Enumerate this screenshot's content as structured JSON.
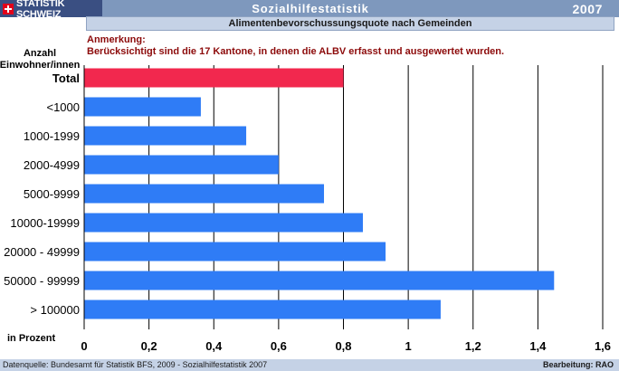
{
  "header": {
    "brand": "STATISTIK SCHWEIZ",
    "section": "Sozialhilfestatistik",
    "year": "2007"
  },
  "subtitle": "Alimentenbevorschussungsquote nach Gemeinden",
  "note": {
    "label": "Anmerkung:",
    "text": "Berücksichtigt sind die 17 Kantone, in denen die ALBV erfasst und ausgewertet wurden."
  },
  "footer": {
    "source": "Datenquelle: Bundesamt für Statistik BFS, 2009 - Sozialhilfestatistik 2007",
    "editor": "Bearbeitung: RAO"
  },
  "colors": {
    "total_bar": "#f2284e",
    "bar": "#2f7cf6",
    "gridline": "#000000"
  },
  "chart_data": {
    "type": "bar",
    "orientation": "horizontal",
    "ylabel": "Anzahl Einwohner/innen",
    "xlabel": "in Prozent",
    "categories": [
      "Total",
      "<1000",
      "1000-1999",
      "2000-4999",
      "5000-9999",
      "10000-19999",
      "20000 - 49999",
      "50000 - 99999",
      "> 100000"
    ],
    "values": [
      0.8,
      0.36,
      0.5,
      0.6,
      0.74,
      0.86,
      0.93,
      1.45,
      1.1
    ],
    "xlim": [
      0,
      1.6
    ],
    "ticks": [
      0,
      0.2,
      0.4,
      0.6,
      0.8,
      1,
      1.2,
      1.4,
      1.6
    ],
    "tick_labels": [
      "0",
      "0,2",
      "0,4",
      "0,6",
      "0,8",
      "1",
      "1,2",
      "1,4",
      "1,6"
    ],
    "grid": true,
    "highlight_category": "Total"
  }
}
